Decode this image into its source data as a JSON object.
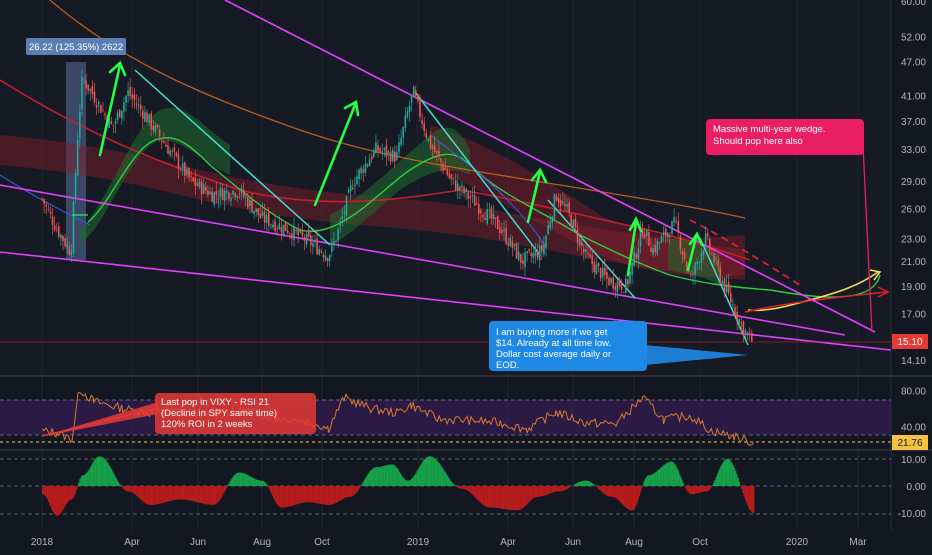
{
  "chart_data": [
    {
      "type": "line",
      "title": "",
      "subtitle": "",
      "y_scale": "log",
      "ylim": [
        13.5,
        60
      ],
      "y_ticks": [
        "60.00",
        "52.00",
        "47.00",
        "41.00",
        "37.00",
        "33.00",
        "29.00",
        "26.00",
        "23.00",
        "21.00",
        "19.00",
        "17.00",
        "15.00",
        "14.10"
      ],
      "x_ticks": [
        "2018",
        "Apr",
        "Jun",
        "Aug",
        "Oct",
        "2019",
        "Apr",
        "Jun",
        "Aug",
        "Oct",
        "2020",
        "Mar"
      ],
      "last_price": "15.10",
      "series": [
        {
          "x": [
            "2018-01-01",
            "2018-01-15",
            "2018-01-29",
            "2018-02-05",
            "2018-02-09",
            "2018-02-20",
            "2018-03-10",
            "2018-03-25",
            "2018-04-10",
            "2018-05-01",
            "2018-05-25",
            "2018-06-15",
            "2018-07-10",
            "2018-08-01",
            "2018-08-25",
            "2018-09-20",
            "2018-10-05",
            "2018-10-12",
            "2018-10-29",
            "2018-11-20",
            "2018-12-10",
            "2018-12-20",
            "2018-12-26",
            "2019-01-10",
            "2019-02-01",
            "2019-02-25",
            "2019-03-20",
            "2019-04-10",
            "2019-04-30",
            "2019-05-13",
            "2019-05-25",
            "2019-06-10",
            "2019-07-01",
            "2019-07-20",
            "2019-08-05",
            "2019-08-15",
            "2019-09-05",
            "2019-09-20",
            "2019-10-05",
            "2019-10-20",
            "2019-11-10",
            "2019-11-20"
          ],
          "values": [
            27,
            24,
            21.8,
            36,
            44,
            41,
            36,
            41.5,
            38,
            33.5,
            29,
            27.5,
            28,
            25,
            24,
            22.5,
            21.5,
            23,
            29,
            33,
            32,
            38,
            41.5,
            34,
            29,
            26.5,
            24,
            21,
            22,
            27.5,
            25.5,
            21.5,
            19.5,
            19,
            24,
            22,
            24.5,
            19.5,
            23,
            19.5,
            16,
            15.1
          ]
        }
      ],
      "annotations": [
        {
          "id": "measure",
          "text": "26.22 (125.35%) 2622"
        },
        {
          "id": "wedge",
          "text": "Massive multi-year wedge. Should pop here also"
        },
        {
          "id": "buying",
          "text": "I am buying more if we get $14.  Already at all time low. Dollar cost average daily or EOD."
        }
      ]
    },
    {
      "type": "line",
      "indicator": "RSI",
      "ylim": [
        15,
        95
      ],
      "y_ticks": [
        "80.00",
        "40.00",
        "20.00"
      ],
      "levels": [
        70,
        30
      ],
      "last_value": "21.76",
      "x": [
        "2018-01-01",
        "2018-01-15",
        "2018-01-30",
        "2018-02-06",
        "2018-02-20",
        "2018-03-20",
        "2018-04-15",
        "2018-05-15",
        "2018-06-15",
        "2018-07-15",
        "2018-08-15",
        "2018-09-15",
        "2018-10-05",
        "2018-10-20",
        "2018-11-15",
        "2018-12-10",
        "2018-12-24",
        "2019-01-20",
        "2019-02-20",
        "2019-03-20",
        "2019-04-15",
        "2019-05-13",
        "2019-06-10",
        "2019-07-10",
        "2019-08-05",
        "2019-08-25",
        "2019-09-20",
        "2019-10-10",
        "2019-11-01",
        "2019-11-20"
      ],
      "values": [
        35,
        33,
        26,
        82,
        68,
        60,
        55,
        57,
        52,
        58,
        50,
        46,
        38,
        72,
        60,
        55,
        64,
        48,
        47,
        44,
        37,
        56,
        44,
        43,
        72,
        48,
        52,
        35,
        29,
        22
      ],
      "annotations": [
        {
          "id": "rsi-note",
          "text": "Last pop in VIXY - RSI 21\n(Decline in SPY same time)\n120% ROI in 2 weeks"
        }
      ]
    },
    {
      "type": "area",
      "indicator": "oscillator",
      "ylim": [
        -14,
        14
      ],
      "y_ticks": [
        "10.00",
        "0.00",
        "-10.00"
      ],
      "x": [
        "2018-01-01",
        "2018-01-15",
        "2018-01-29",
        "2018-02-09",
        "2018-02-25",
        "2018-03-25",
        "2018-04-15",
        "2018-05-15",
        "2018-06-15",
        "2018-07-10",
        "2018-08-01",
        "2018-08-20",
        "2018-09-15",
        "2018-10-05",
        "2018-10-25",
        "2018-11-20",
        "2018-12-05",
        "2018-12-20",
        "2019-01-10",
        "2019-02-10",
        "2019-03-10",
        "2019-04-05",
        "2019-04-25",
        "2019-05-15",
        "2019-06-10",
        "2019-07-05",
        "2019-07-25",
        "2019-08-10",
        "2019-09-01",
        "2019-09-20",
        "2019-10-05",
        "2019-10-25",
        "2019-11-20"
      ],
      "values": [
        -3,
        -11,
        -5,
        4,
        11,
        -2,
        -7,
        -5,
        -7,
        5,
        2,
        -8,
        -6,
        -7,
        -4,
        7,
        8,
        2,
        11,
        -1,
        -8,
        -9,
        -4,
        -2,
        2,
        -4,
        -9,
        4,
        9,
        -3,
        -2,
        10,
        -10
      ]
    }
  ]
}
